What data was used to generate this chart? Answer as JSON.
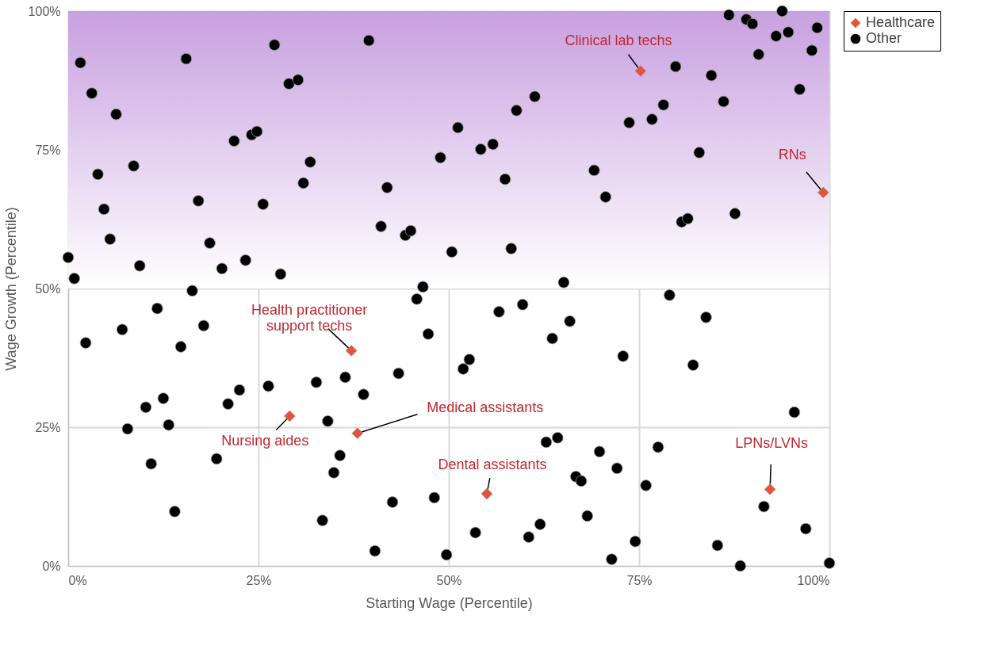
{
  "chart_data": {
    "type": "scatter",
    "xlabel": "Starting Wage (Percentile)",
    "ylabel": "Wage Growth (Percentile)",
    "xlim": [
      0,
      100
    ],
    "ylim": [
      0,
      100
    ],
    "xticks": [
      {
        "value": 0,
        "label": "0%"
      },
      {
        "value": 25,
        "label": "25%"
      },
      {
        "value": 50,
        "label": "50%"
      },
      {
        "value": 75,
        "label": "75%"
      },
      {
        "value": 100,
        "label": "100%"
      }
    ],
    "yticks": [
      {
        "value": 0,
        "label": "0%"
      },
      {
        "value": 25,
        "label": "25%"
      },
      {
        "value": 50,
        "label": "50%"
      },
      {
        "value": 75,
        "label": "75%"
      },
      {
        "value": 100,
        "label": "100%"
      }
    ],
    "grid": true,
    "legend": "top right",
    "bands": [
      {
        "axis": "y",
        "from": 50,
        "to": 100,
        "color": "#c8a0e0"
      }
    ],
    "series": [
      {
        "name": "Healthcare",
        "color": "#e8503a",
        "marker": "diamond",
        "x": [
          75.2,
          99.2,
          37.2,
          29.1,
          38.0,
          55.0,
          92.2
        ],
        "values": [
          89.2,
          67.3,
          38.8,
          27.0,
          23.9,
          13.0,
          13.8
        ]
      },
      {
        "name": "Other",
        "color": "#000000",
        "marker": "circle",
        "x": [
          0,
          0.8,
          1.6,
          2.3,
          3.1,
          3.9,
          4.7,
          5.5,
          6.3,
          7.1,
          7.8,
          8.6,
          9.4,
          10.2,
          10.9,
          11.7,
          12.5,
          13.2,
          14.0,
          14.8,
          15.5,
          16.3,
          17.1,
          17.8,
          18.6,
          19.5,
          20.2,
          21.0,
          21.8,
          22.5,
          23.3,
          24.1,
          24.8,
          25.6,
          26.3,
          27.1,
          27.9,
          29.0,
          30.2,
          30.9,
          31.8,
          32.6,
          33.4,
          34.1,
          34.9,
          35.7,
          36.4,
          38.8,
          39.5,
          40.3,
          41.1,
          41.9,
          42.6,
          43.4,
          44.3,
          45.0,
          45.8,
          46.6,
          47.3,
          48.1,
          48.9,
          49.7,
          50.4,
          51.2,
          51.9,
          52.7,
          53.5,
          54.2,
          55.8,
          56.6,
          57.4,
          58.2,
          58.9,
          59.7,
          60.5,
          61.3,
          62.0,
          62.8,
          63.6,
          64.3,
          65.1,
          65.9,
          66.7,
          67.4,
          68.2,
          69.1,
          69.8,
          70.6,
          71.4,
          72.1,
          72.9,
          73.7,
          74.5,
          76.7,
          77.5,
          78.2,
          79.0,
          79.8,
          75.9,
          80.6,
          81.4,
          82.1,
          82.9,
          83.8,
          84.5,
          85.3,
          86.1,
          86.8,
          87.6,
          88.3,
          89.1,
          89.9,
          90.7,
          91.4,
          93.0,
          93.8,
          94.6,
          95.4,
          96.1,
          96.9,
          97.7,
          98.4,
          100
        ],
        "values": [
          55.6,
          51.8,
          90.7,
          40.2,
          85.2,
          70.6,
          64.3,
          58.9,
          81.4,
          42.6,
          24.7,
          72.1,
          54.1,
          28.6,
          18.4,
          46.4,
          30.2,
          25.4,
          9.8,
          39.5,
          91.4,
          49.6,
          65.8,
          43.3,
          58.2,
          19.3,
          53.6,
          29.2,
          76.6,
          31.7,
          55.1,
          77.7,
          78.3,
          65.2,
          32.4,
          93.9,
          52.6,
          86.9,
          87.6,
          69.0,
          72.8,
          33.1,
          8.2,
          26.1,
          16.8,
          19.9,
          34.0,
          30.9,
          94.7,
          2.7,
          61.2,
          68.2,
          11.5,
          34.7,
          59.6,
          60.4,
          48.1,
          50.3,
          41.8,
          12.3,
          73.6,
          2.0,
          56.6,
          79.0,
          35.5,
          37.2,
          6.0,
          75.1,
          76.0,
          45.8,
          69.7,
          57.2,
          82.1,
          47.1,
          5.2,
          84.6,
          7.5,
          22.3,
          41.0,
          23.1,
          51.1,
          44.1,
          16.1,
          15.3,
          9.0,
          71.3,
          20.6,
          66.5,
          1.2,
          17.6,
          37.8,
          79.9,
          4.4,
          80.5,
          21.4,
          83.1,
          48.8,
          90.0,
          14.5,
          62.0,
          62.6,
          36.2,
          74.5,
          44.8,
          88.4,
          3.7,
          83.7,
          99.3,
          63.5,
          0,
          98.5,
          97.7,
          92.2,
          10.7,
          95.5,
          100,
          96.2,
          27.7,
          85.9,
          6.7,
          92.9,
          97.0,
          0.5
        ]
      }
    ],
    "annotations": [
      {
        "text": "Clinical lab techs",
        "x": 75.2,
        "y": 89.2
      },
      {
        "text": "RNs",
        "x": 99.2,
        "y": 67.3
      },
      {
        "text": "Health practitioner\nsupport techs",
        "x": 37.2,
        "y": 38.8
      },
      {
        "text": "Nursing aides",
        "x": 29.1,
        "y": 27.0
      },
      {
        "text": "Medical assistants",
        "x": 38.0,
        "y": 23.9
      },
      {
        "text": "Dental assistants",
        "x": 55.0,
        "y": 13.0
      },
      {
        "text": "LPNs/LVNs",
        "x": 92.2,
        "y": 13.8
      }
    ]
  }
}
